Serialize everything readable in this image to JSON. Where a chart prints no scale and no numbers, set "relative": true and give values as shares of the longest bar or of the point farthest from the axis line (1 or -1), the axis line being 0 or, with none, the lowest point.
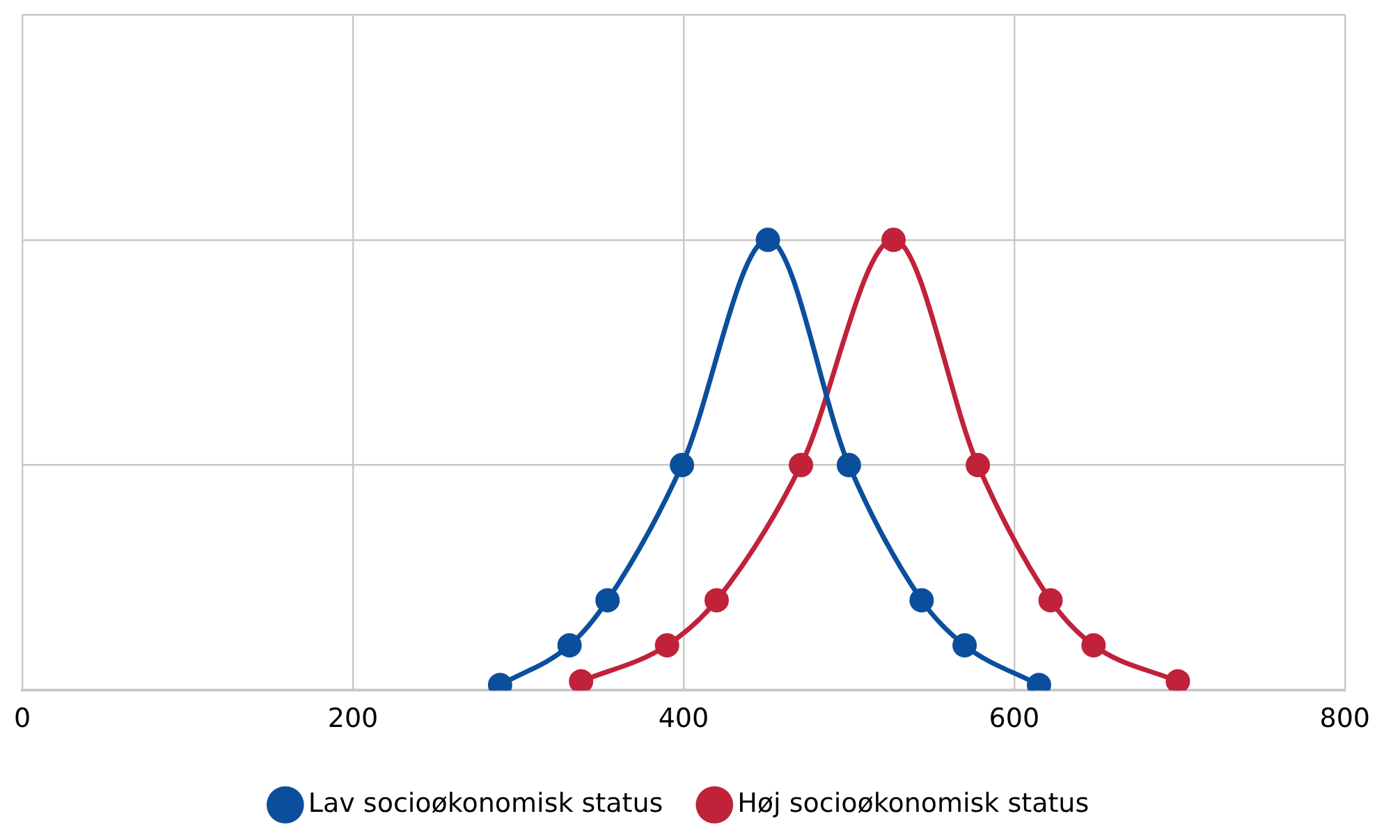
{
  "chart_data": {
    "type": "line",
    "relative": true,
    "xlim": [
      0,
      800
    ],
    "xticks": [
      0,
      200,
      400,
      600,
      800
    ],
    "grid": true,
    "legend": "bottom",
    "marker": "circle",
    "line_style": "solid",
    "series": [
      {
        "name": "Lav socioøkonomisk status",
        "color": "#0b4f9c",
        "x": [
          289,
          331,
          354,
          399,
          451,
          500,
          544,
          570,
          615
        ],
        "values": [
          0.012,
          0.1,
          0.2,
          0.5,
          1,
          0.5,
          0.2,
          0.1,
          0.012
        ]
      },
      {
        "name": "Høj socioøkonomisk status",
        "color": "#c0223a",
        "x": [
          338,
          390,
          420,
          471,
          527,
          578,
          622,
          648,
          699
        ],
        "values": [
          0.02,
          0.1,
          0.2,
          0.5,
          1,
          0.5,
          0.2,
          0.1,
          0.02
        ]
      }
    ]
  }
}
